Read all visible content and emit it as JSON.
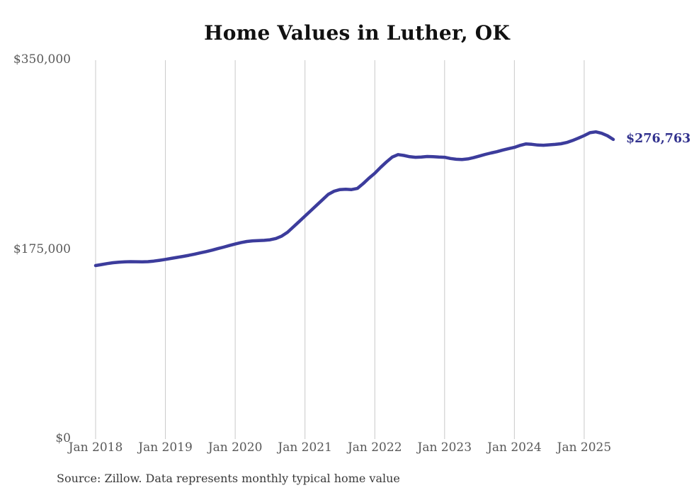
{
  "title": "Home Values in Luther, OK",
  "source_note": "Source: Zillow. Data represents monthly typical home value",
  "colors": {
    "line": "#3C3C9C",
    "latest_label": "#32328E",
    "gridline": "#C9C9C9",
    "axis_text": "#595959",
    "title_text": "#111111",
    "source_text": "#3A3A3A",
    "background": "#FFFFFF"
  },
  "chart_data": {
    "type": "line",
    "title": "Home Values in Luther, OK",
    "xlabel": "",
    "ylabel": "",
    "ylim": [
      0,
      350000
    ],
    "grid": "vertical-only",
    "legend": "none",
    "y_tick_labels": [
      "$350,000",
      "$175,000",
      "$0"
    ],
    "y_tick_values": [
      350000,
      175000,
      0
    ],
    "x_tick_labels": [
      "Jan 2018",
      "Jan 2019",
      "Jan 2020",
      "Jan 2021",
      "Jan 2022",
      "Jan 2023",
      "Jan 2024",
      "Jan 2025"
    ],
    "last_value": 276763,
    "last_value_label": "$276,763",
    "series": [
      {
        "name": "Monthly typical home value",
        "months": [
          "2018-01",
          "2018-02",
          "2018-03",
          "2018-04",
          "2018-05",
          "2018-06",
          "2018-07",
          "2018-08",
          "2018-09",
          "2018-10",
          "2018-11",
          "2018-12",
          "2019-01",
          "2019-02",
          "2019-03",
          "2019-04",
          "2019-05",
          "2019-06",
          "2019-07",
          "2019-08",
          "2019-09",
          "2019-10",
          "2019-11",
          "2019-12",
          "2020-01",
          "2020-02",
          "2020-03",
          "2020-04",
          "2020-05",
          "2020-06",
          "2020-07",
          "2020-08",
          "2020-09",
          "2020-10",
          "2020-11",
          "2020-12",
          "2021-01",
          "2021-02",
          "2021-03",
          "2021-04",
          "2021-05",
          "2021-06",
          "2021-07",
          "2021-08",
          "2021-09",
          "2021-10",
          "2021-11",
          "2021-12",
          "2022-01",
          "2022-02",
          "2022-03",
          "2022-04",
          "2022-05",
          "2022-06",
          "2022-07",
          "2022-08",
          "2022-09",
          "2022-10",
          "2022-11",
          "2022-12",
          "2023-01",
          "2023-02",
          "2023-03",
          "2023-04",
          "2023-05",
          "2023-06",
          "2023-07",
          "2023-08",
          "2023-09",
          "2023-10",
          "2023-11",
          "2023-12",
          "2024-01",
          "2024-02",
          "2024-03",
          "2024-04",
          "2024-05",
          "2024-06",
          "2024-07",
          "2024-08",
          "2024-09",
          "2024-10",
          "2024-11",
          "2024-12",
          "2025-01",
          "2025-02",
          "2025-03",
          "2025-04",
          "2025-05",
          "2025-06"
        ],
        "values": [
          160300,
          161200,
          162100,
          162900,
          163400,
          163700,
          163900,
          163800,
          163700,
          163900,
          164400,
          165100,
          166000,
          166900,
          167800,
          168700,
          169700,
          170800,
          172000,
          173200,
          174500,
          175900,
          177300,
          178800,
          180200,
          181500,
          182500,
          183100,
          183400,
          183600,
          184100,
          185300,
          187500,
          191000,
          196000,
          201000,
          206000,
          211000,
          216000,
          221000,
          226000,
          229000,
          230500,
          230800,
          230500,
          231500,
          236000,
          241000,
          245500,
          251000,
          256000,
          260500,
          262800,
          262000,
          260800,
          260300,
          260500,
          261000,
          260800,
          260500,
          260300,
          259200,
          258500,
          258300,
          258800,
          260000,
          261500,
          263000,
          264300,
          265500,
          267000,
          268300,
          269500,
          271300,
          272700,
          272300,
          271600,
          271400,
          271800,
          272200,
          272800,
          274000,
          275800,
          278000,
          280300,
          283000,
          283800,
          282500,
          280200,
          276763
        ]
      }
    ]
  }
}
